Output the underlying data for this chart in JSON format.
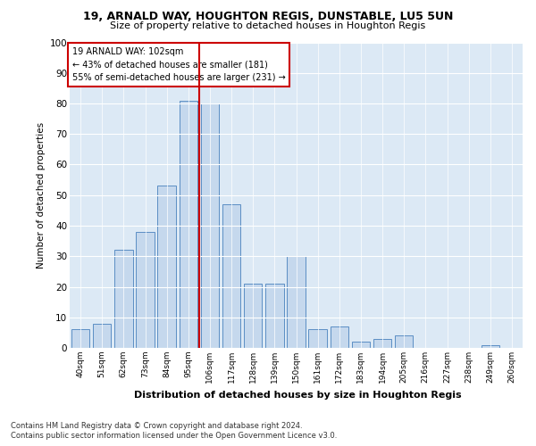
{
  "title1": "19, ARNALD WAY, HOUGHTON REGIS, DUNSTABLE, LU5 5UN",
  "title2": "Size of property relative to detached houses in Houghton Regis",
  "xlabel": "Distribution of detached houses by size in Houghton Regis",
  "ylabel": "Number of detached properties",
  "categories": [
    "40sqm",
    "51sqm",
    "62sqm",
    "73sqm",
    "84sqm",
    "95sqm",
    "106sqm",
    "117sqm",
    "128sqm",
    "139sqm",
    "150sqm",
    "161sqm",
    "172sqm",
    "183sqm",
    "194sqm",
    "205sqm",
    "216sqm",
    "227sqm",
    "238sqm",
    "249sqm",
    "260sqm"
  ],
  "values": [
    6,
    8,
    32,
    38,
    53,
    81,
    80,
    47,
    21,
    21,
    30,
    6,
    7,
    2,
    3,
    4,
    0,
    0,
    0,
    1,
    0
  ],
  "bar_color": "#c5d8ed",
  "bar_edge_color": "#5b8ec4",
  "vline_x": 5.5,
  "vline_color": "#cc0000",
  "annotation_title": "19 ARNALD WAY: 102sqm",
  "annotation_line2": "← 43% of detached houses are smaller (181)",
  "annotation_line3": "55% of semi-detached houses are larger (231) →",
  "annotation_box_color": "#cc0000",
  "ylim": [
    0,
    100
  ],
  "yticks": [
    0,
    10,
    20,
    30,
    40,
    50,
    60,
    70,
    80,
    90,
    100
  ],
  "footer1": "Contains HM Land Registry data © Crown copyright and database right 2024.",
  "footer2": "Contains public sector information licensed under the Open Government Licence v3.0.",
  "bg_color": "#dce9f5",
  "plot_bg_color": "#dce9f5"
}
